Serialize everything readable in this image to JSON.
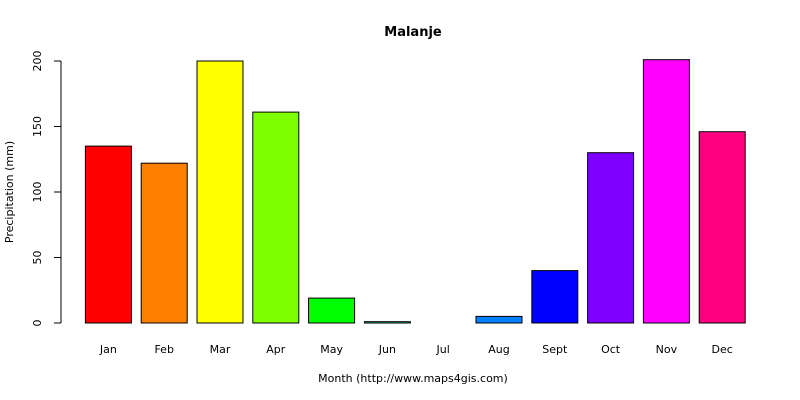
{
  "chart_data": {
    "type": "bar",
    "title": "Malanje",
    "xlabel": "Month (http://www.maps4gis.com)",
    "ylabel": "Precipitation (mm)",
    "categories": [
      "Jan",
      "Feb",
      "Mar",
      "Apr",
      "May",
      "Jun",
      "Jul",
      "Aug",
      "Sept",
      "Oct",
      "Nov",
      "Dec"
    ],
    "values": [
      135,
      122,
      200,
      161,
      19,
      1,
      0,
      5,
      40,
      130,
      201,
      146
    ],
    "colors": [
      "#ff0000",
      "#ff8000",
      "#ffff00",
      "#80ff00",
      "#00ff00",
      "#00ff80",
      "#00ffff",
      "#0080ff",
      "#0000ff",
      "#8000ff",
      "#ff00ff",
      "#ff0080"
    ],
    "ylim": [
      0,
      200
    ],
    "yticks": [
      0,
      50,
      100,
      150,
      200
    ],
    "grid": false,
    "legend": "none"
  }
}
